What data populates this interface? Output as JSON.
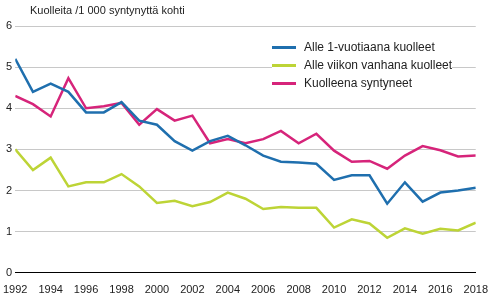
{
  "chart_data": {
    "type": "line",
    "y_label": "Kuolleita /1 000 syntynyttä kohti",
    "x": [
      1992,
      1993,
      1994,
      1995,
      1996,
      1997,
      1998,
      1999,
      2000,
      2001,
      2002,
      2003,
      2004,
      2005,
      2006,
      2007,
      2008,
      2009,
      2010,
      2011,
      2012,
      2013,
      2014,
      2015,
      2016,
      2017,
      2018
    ],
    "series": [
      {
        "name": "Alle 1-vuotiaana kuolleet",
        "color": "#1f6fae",
        "values": [
          5.2,
          4.4,
          4.6,
          4.4,
          3.9,
          3.9,
          4.15,
          3.7,
          3.6,
          3.2,
          2.97,
          3.2,
          3.33,
          3.1,
          2.85,
          2.7,
          2.68,
          2.65,
          2.26,
          2.37,
          2.37,
          1.68,
          2.2,
          1.73,
          1.95,
          2.0,
          2.07
        ]
      },
      {
        "name": "Alle viikon vanhana kuolleet",
        "color": "#bdd436",
        "values": [
          3.0,
          2.5,
          2.8,
          2.1,
          2.2,
          2.2,
          2.4,
          2.1,
          1.7,
          1.75,
          1.62,
          1.72,
          1.95,
          1.8,
          1.55,
          1.6,
          1.58,
          1.58,
          1.1,
          1.3,
          1.2,
          0.85,
          1.08,
          0.95,
          1.07,
          1.03,
          1.22
        ]
      },
      {
        "name": "Kuolleena syntyneet",
        "color": "#d6247a",
        "values": [
          4.3,
          4.1,
          3.8,
          4.73,
          4.0,
          4.05,
          4.13,
          3.6,
          3.98,
          3.7,
          3.82,
          3.15,
          3.25,
          3.15,
          3.25,
          3.45,
          3.15,
          3.38,
          2.97,
          2.7,
          2.72,
          2.53,
          2.85,
          3.08,
          2.98,
          2.83,
          2.85
        ]
      }
    ],
    "xlim": [
      1992,
      2018
    ],
    "xticks": [
      1992,
      1994,
      1996,
      1998,
      2000,
      2002,
      2004,
      2006,
      2008,
      2010,
      2012,
      2014,
      2016,
      2018
    ],
    "ylim": [
      0,
      6
    ],
    "yticks": [
      0,
      1,
      2,
      3,
      4,
      5,
      6
    ],
    "grid": true,
    "legend": "upper right"
  }
}
